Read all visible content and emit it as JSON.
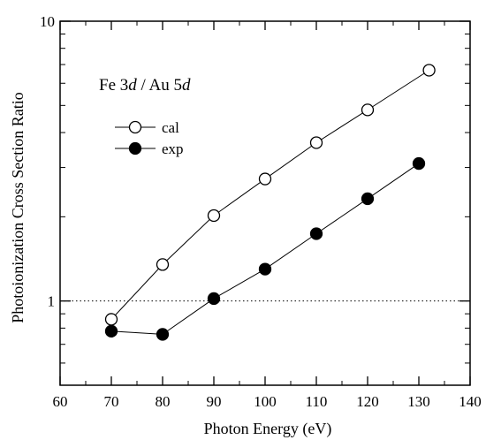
{
  "chart_data": {
    "type": "scatter",
    "xlabel": "Photon Energy (eV)",
    "ylabel": "Photoionization Cross Section Ratio",
    "xlim": [
      60,
      140
    ],
    "ylim": [
      0.5,
      10
    ],
    "yscale": "log",
    "x_ticks": [
      "60",
      "70",
      "80",
      "90",
      "100",
      "110",
      "120",
      "130",
      "140"
    ],
    "y_ticks": [
      "1",
      "10"
    ],
    "reference_line": {
      "y": 1,
      "style": "dotted"
    },
    "annotation": {
      "parts": [
        "Fe 3",
        "d",
        " / Au 5",
        "d"
      ]
    },
    "series": [
      {
        "name": "cal",
        "marker": "open-circle",
        "x": [
          70,
          80,
          90,
          100,
          110,
          120,
          132
        ],
        "y": [
          0.86,
          1.35,
          2.02,
          2.73,
          3.68,
          4.82,
          6.68
        ]
      },
      {
        "name": "exp",
        "marker": "filled-circle",
        "x": [
          70,
          80,
          90,
          100,
          110,
          120,
          130
        ],
        "y": [
          0.78,
          0.76,
          1.02,
          1.3,
          1.74,
          2.32,
          3.1
        ]
      }
    ],
    "legend": {
      "placement": "upper-left"
    },
    "grid": false
  }
}
